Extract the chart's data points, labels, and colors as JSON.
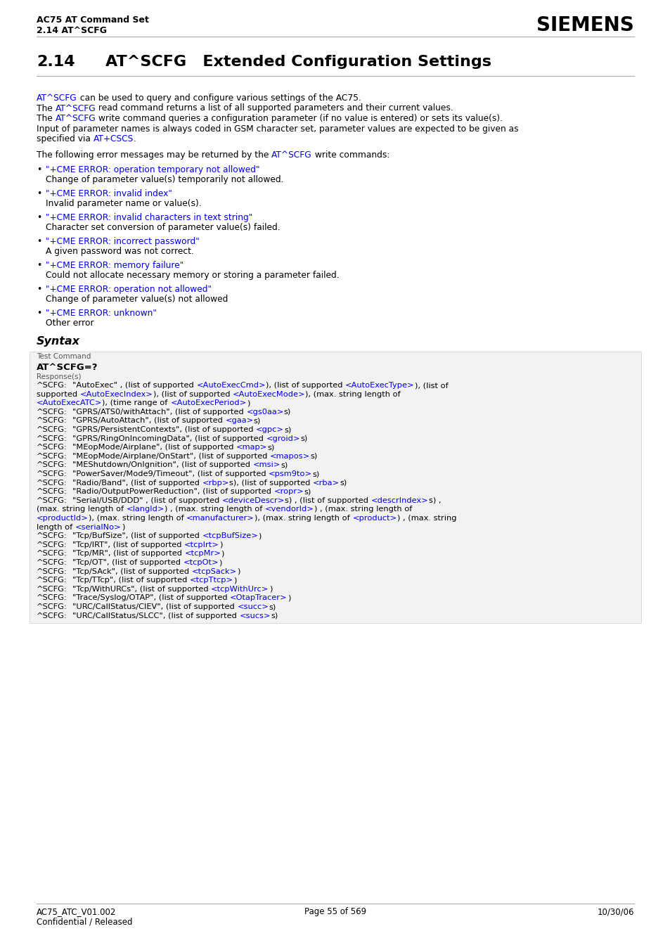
{
  "header_left_line1": "AC75 AT Command Set",
  "header_left_line2": "2.14 AT^SCFG",
  "header_right": "SIEMENS",
  "blue_color": "#0000EE",
  "bg_color": "#FFFFFF",
  "box_bg": "#F2F2F2",
  "box_border": "#CCCCCC",
  "footer_left1": "AC75_ATC_V01.002",
  "footer_left2": "Confidential / Released",
  "footer_center": "Page 55 of 569",
  "footer_right": "10/30/06"
}
